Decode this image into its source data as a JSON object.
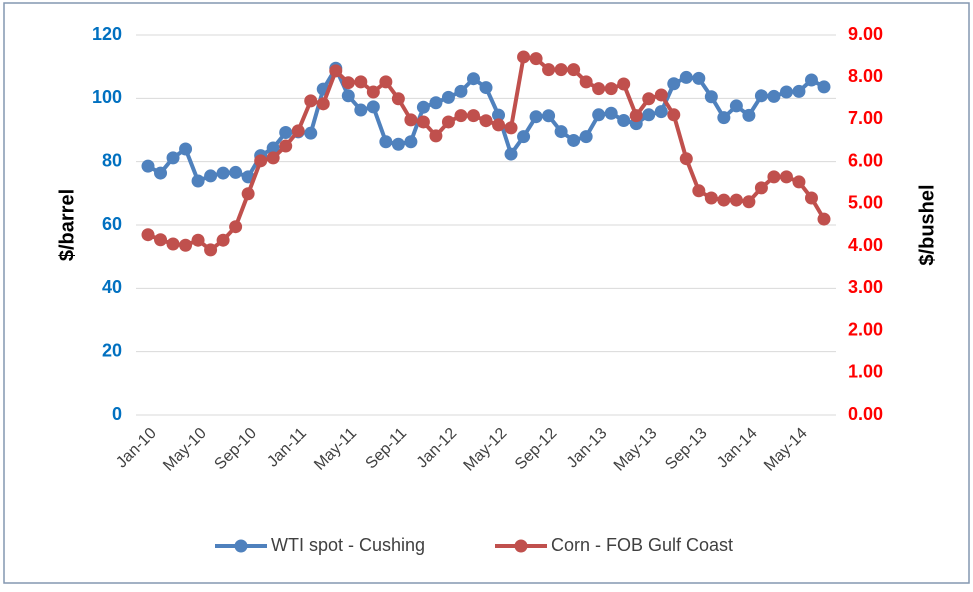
{
  "chart_data": {
    "type": "line",
    "categories": [
      "Jan-10",
      null,
      null,
      null,
      "May-10",
      null,
      null,
      null,
      "Sep-10",
      null,
      null,
      null,
      "Jan-11",
      null,
      null,
      null,
      "May-11",
      null,
      null,
      null,
      "Sep-11",
      null,
      null,
      null,
      "Jan-12",
      null,
      null,
      null,
      "May-12",
      null,
      null,
      null,
      "Sep-12",
      null,
      null,
      null,
      "Jan-13",
      null,
      null,
      null,
      "May-13",
      null,
      null,
      null,
      "Sep-13",
      null,
      null,
      null,
      "Jan-14",
      null,
      null,
      null,
      "May-14",
      null,
      null
    ],
    "y_label": "$/barrel",
    "y2_label": "$/bushel",
    "ylim": [
      0,
      120
    ],
    "yticks": [
      0,
      20,
      40,
      60,
      80,
      100,
      120
    ],
    "y2lim": [
      0,
      9
    ],
    "y2ticks": [
      {
        "value": 0,
        "label": "0.00"
      },
      {
        "value": 1,
        "label": "1.00"
      },
      {
        "value": 2,
        "label": "2.00"
      },
      {
        "value": 3,
        "label": "3.00"
      },
      {
        "value": 4,
        "label": "4.00"
      },
      {
        "value": 5,
        "label": "5.00"
      },
      {
        "value": 6,
        "label": "6.00"
      },
      {
        "value": 7,
        "label": "7.00"
      },
      {
        "value": 8,
        "label": "8.00"
      },
      {
        "value": 9,
        "label": "9.00"
      }
    ],
    "grid": true,
    "legend": "bottom",
    "series": [
      {
        "name": "WTI spot - Cushing",
        "color": "#4f81bd",
        "values": [
          78.6,
          76.4,
          81.2,
          84,
          73.9,
          75.5,
          76.4,
          76.6,
          75.2,
          81.9,
          84.3,
          89.2,
          89.4,
          89,
          102.9,
          109.5,
          100.8,
          96.3,
          97.3,
          86.3,
          85.5,
          86.3,
          97.2,
          98.6,
          100.3,
          102.2,
          106.2,
          103.4,
          94.7,
          82.4,
          87.9,
          94.2,
          94.5,
          89.5,
          86.7,
          87.9,
          94.8,
          95.3,
          93,
          92,
          94.8,
          95.8,
          104.6,
          106.6,
          106.3,
          100.5,
          93.9,
          97.6,
          94.6,
          100.8,
          100.6,
          102,
          102.2,
          105.8,
          103.6
        ]
      },
      {
        "name": "Corn - FOB Gulf Coast",
        "color": "#c0504d",
        "axis": "y2",
        "values": [
          4.27,
          4.15,
          4.05,
          4.02,
          4.14,
          3.91,
          4.14,
          4.46,
          5.24,
          6.02,
          6.09,
          6.37,
          6.73,
          7.44,
          7.37,
          8.15,
          7.87,
          7.89,
          7.65,
          7.89,
          7.49,
          6.99,
          6.94,
          6.61,
          6.94,
          7.09,
          7.09,
          6.97,
          6.87,
          6.8,
          8.48,
          8.44,
          8.18,
          8.18,
          8.18,
          7.89,
          7.73,
          7.73,
          7.84,
          7.09,
          7.49,
          7.58,
          7.11,
          6.07,
          5.31,
          5.14,
          5.09,
          5.09,
          5.05,
          5.38,
          5.64,
          5.64,
          5.52,
          5.14,
          4.64
        ]
      }
    ]
  }
}
